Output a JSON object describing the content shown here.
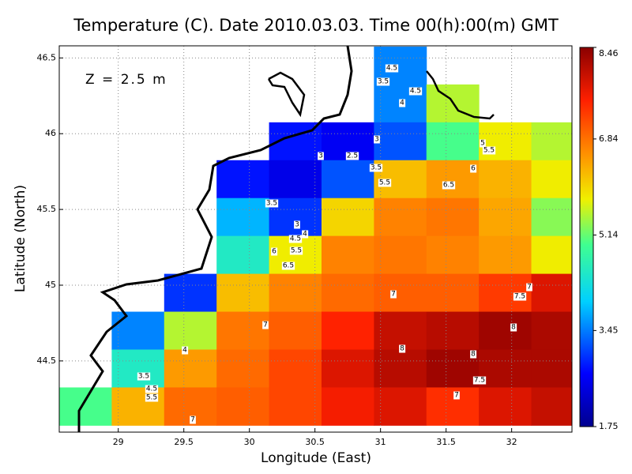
{
  "chart_data": {
    "type": "heatmap",
    "title": "Temperature (C). Date 2010.03.03. Time 00(h):00(m) GMT",
    "annotation": "Z = 2.5 m",
    "x_label": "Longitude (East)",
    "y_label": "Latitude (North)",
    "xlim": [
      28.55,
      32.46
    ],
    "ylim": [
      44.03,
      46.58
    ],
    "xticks": [
      29,
      29.5,
      30,
      30.5,
      31,
      31.5,
      32
    ],
    "yticks": [
      44.5,
      45,
      45.5,
      46,
      46.5
    ],
    "grid": true,
    "colorbar": {
      "lim": [
        1.75,
        8.46
      ],
      "ticks": [
        1.75,
        3.45,
        5.14,
        6.84,
        8.46
      ]
    },
    "field": {
      "lon": [
        28.75,
        29.15,
        29.55,
        29.95,
        30.35,
        30.75,
        31.15,
        31.55,
        31.95,
        32.35
      ],
      "lat": [
        46.45,
        46.2,
        45.95,
        45.7,
        45.45,
        45.2,
        44.95,
        44.7,
        44.45,
        44.2
      ],
      "values": [
        [
          null,
          null,
          null,
          null,
          null,
          null,
          3.5,
          null,
          null,
          null
        ],
        [
          null,
          null,
          null,
          null,
          null,
          null,
          3.5,
          5.5,
          null,
          null
        ],
        [
          null,
          null,
          null,
          null,
          2.8,
          2.6,
          3.2,
          5.0,
          5.8,
          5.5
        ],
        [
          null,
          null,
          null,
          2.8,
          2.5,
          3.2,
          6.2,
          6.5,
          6.3,
          5.8
        ],
        [
          null,
          null,
          null,
          3.8,
          3.0,
          6.0,
          6.7,
          6.8,
          6.4,
          5.3
        ],
        [
          null,
          null,
          null,
          4.5,
          5.8,
          6.7,
          6.8,
          6.7,
          6.5,
          5.8
        ],
        [
          null,
          null,
          3.0,
          6.2,
          6.7,
          6.9,
          7.0,
          7.0,
          7.3,
          7.8
        ],
        [
          null,
          3.5,
          5.5,
          6.8,
          7.0,
          7.5,
          8.0,
          8.1,
          8.3,
          8.2
        ],
        [
          null,
          4.5,
          6.5,
          6.9,
          7.2,
          7.8,
          8.1,
          8.3,
          8.2,
          8.2
        ],
        [
          5.0,
          6.3,
          6.9,
          7.0,
          7.2,
          7.6,
          7.8,
          7.4,
          7.8,
          8.0
        ]
      ]
    },
    "contour_labels": [
      4.5,
      3.5,
      4.5,
      4,
      3,
      2.5,
      3,
      3.5,
      5.5,
      5,
      5.5,
      6,
      6.5,
      3.5,
      3,
      4,
      4.5,
      5.5,
      6,
      6.5,
      7,
      7,
      7.5,
      7,
      8,
      8,
      8,
      7.5,
      7,
      4,
      3.5,
      4.5,
      5.5,
      7
    ]
  }
}
